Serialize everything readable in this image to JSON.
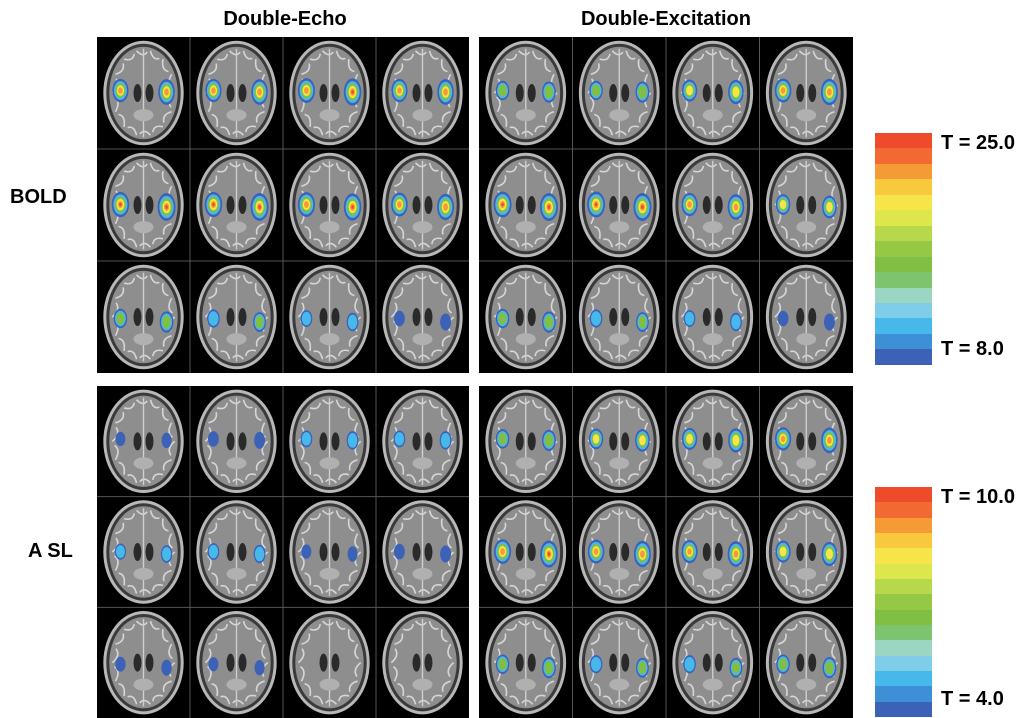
{
  "columns": [
    "Double-Echo",
    "Double-Excitation"
  ],
  "rows": [
    "BOLD",
    "A SL"
  ],
  "colorbars": [
    {
      "max_label": "T = 25.0",
      "min_label": "T = 8.0"
    },
    {
      "max_label": "T = 10.0",
      "min_label": "T = 4.0"
    }
  ],
  "colormap": [
    "#ee4b2b",
    "#f26a32",
    "#f59b36",
    "#f8c93c",
    "#f5e549",
    "#dde64a",
    "#b6d84a",
    "#95c845",
    "#80bf43",
    "#7ec36d",
    "#9bd6c3",
    "#7fcde8",
    "#47b8ea",
    "#3d8fd6",
    "#3c62b8"
  ],
  "panels": [
    {
      "name": "bold-double-echo",
      "intensity": [
        [
          0.8,
          0.8,
          0.9,
          0.8
        ],
        [
          0.95,
          0.95,
          0.9,
          0.85
        ],
        [
          0.5,
          0.4,
          0.3,
          0.2
        ]
      ]
    },
    {
      "name": "bold-double-excitation",
      "intensity": [
        [
          0.5,
          0.5,
          0.7,
          0.85
        ],
        [
          1.0,
          1.0,
          0.8,
          0.6
        ],
        [
          0.5,
          0.4,
          0.3,
          0.2
        ]
      ]
    },
    {
      "name": "asl-double-echo",
      "intensity": [
        [
          0.1,
          0.2,
          0.3,
          0.3
        ],
        [
          0.25,
          0.3,
          0.1,
          0.2
        ],
        [
          0.15,
          0.1,
          0.0,
          0.0
        ]
      ]
    },
    {
      "name": "asl-double-excitation",
      "intensity": [
        [
          0.5,
          0.6,
          0.7,
          0.8
        ],
        [
          0.9,
          0.85,
          0.8,
          0.7
        ],
        [
          0.5,
          0.4,
          0.4,
          0.5
        ]
      ]
    }
  ]
}
